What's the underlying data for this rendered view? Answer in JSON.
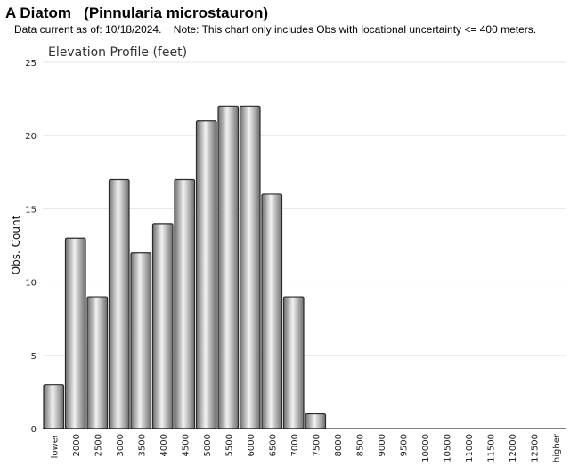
{
  "header": {
    "title": "A Diatom   (Pinnularia microstauron)",
    "note": "Data current as of: 10/18/2024.    Note: This chart only includes Obs with locational uncertainty <= 400 meters."
  },
  "chart_data": {
    "type": "bar",
    "title": "Elevation Profile (feet)",
    "xlabel": "",
    "ylabel": "Obs. Count",
    "ylim": [
      0,
      25
    ],
    "yticks": [
      0,
      5,
      10,
      15,
      20,
      25
    ],
    "grid": true,
    "categories": [
      "lower",
      "2000",
      "2500",
      "3000",
      "3500",
      "4000",
      "4500",
      "5000",
      "5500",
      "6000",
      "6500",
      "7000",
      "7500",
      "8000",
      "8500",
      "9000",
      "9500",
      "10000",
      "10500",
      "11000",
      "11500",
      "12000",
      "12500",
      "higher"
    ],
    "values": [
      3,
      13,
      9,
      17,
      12,
      14,
      17,
      21,
      22,
      22,
      16,
      9,
      1,
      0,
      0,
      0,
      0,
      0,
      0,
      0,
      0,
      0,
      0,
      0
    ],
    "colors": {
      "bar_light": "#f2f2f2",
      "bar_mid": "#c2c2c2",
      "bar_dark": "#6e6e6e",
      "bar_edge": "#2b2b2b",
      "grid": "#e6e6e6",
      "axis": "#000000"
    }
  }
}
